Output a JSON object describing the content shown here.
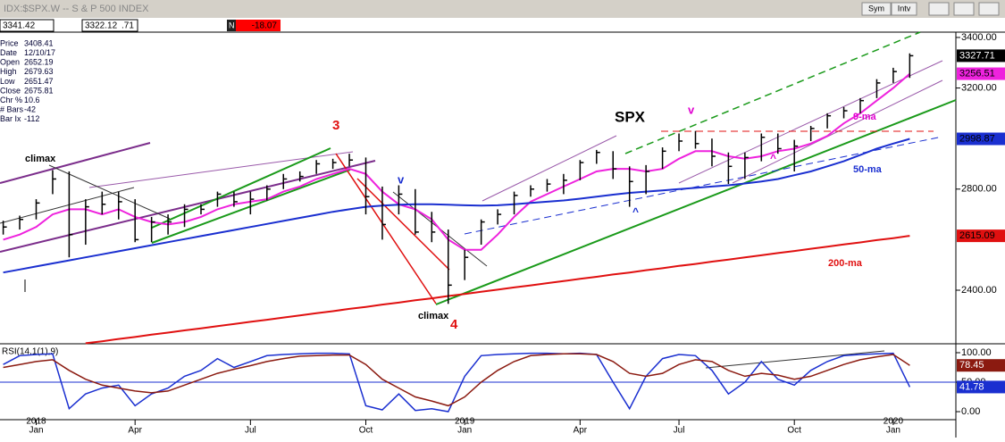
{
  "header": {
    "title": "IDX:$SPX.W -- S & P 500 INDEX",
    "fields": [
      "3341.42",
      "3322.12",
      ".71"
    ],
    "flag": "N",
    "change": "-18.07",
    "buttons": [
      "Sym",
      "Intv"
    ]
  },
  "info": [
    {
      "label": "Price",
      "value": "3408.41"
    },
    {
      "label": "Date",
      "value": "12/10/17"
    },
    {
      "label": "Open",
      "value": "2652.19"
    },
    {
      "label": "High",
      "value": "2679.63"
    },
    {
      "label": "Low",
      "value": "2651.47"
    },
    {
      "label": "Close",
      "value": "2675.81"
    },
    {
      "label": "Chr %",
      "value": "10.6"
    },
    {
      "label": "# Bars",
      "value": "-42"
    },
    {
      "label": "Bar Ix",
      "value": "-112"
    }
  ],
  "chart_data": {
    "type": "ohlc",
    "title": "SPX",
    "categories": [
      null,
      null,
      "Jan",
      null,
      null,
      null,
      null,
      null,
      "Apr",
      null,
      null,
      null,
      null,
      null,
      null,
      "Jul",
      null,
      null,
      null,
      null,
      null,
      null,
      "Oct",
      null,
      null,
      null,
      null,
      null,
      "Jan",
      null,
      null,
      null,
      null,
      null,
      null,
      "Apr",
      null,
      null,
      null,
      null,
      null,
      "Jul",
      null,
      null,
      null,
      null,
      null,
      null,
      "Oct",
      null,
      null,
      null,
      null,
      null,
      "Jan",
      null
    ],
    "years": [
      "2018",
      "2019",
      "2020"
    ],
    "high": [
      2675,
      2695,
      2760,
      2875,
      2870,
      2760,
      2790,
      2790,
      2760,
      2690,
      2700,
      2740,
      2740,
      2790,
      2790,
      2790,
      2815,
      2860,
      2870,
      2915,
      2920,
      2940,
      2925,
      2810,
      2815,
      2800,
      2710,
      2640,
      2560,
      2680,
      2720,
      2790,
      2815,
      2840,
      2860,
      2915,
      2955,
      2950,
      2890,
      2895,
      2965,
      3020,
      3030,
      3000,
      2945,
      2945,
      3020,
      3020,
      2995,
      3050,
      3100,
      3125,
      3160,
      3235,
      3280,
      3337
    ],
    "low": [
      2620,
      2640,
      2680,
      2780,
      2530,
      2580,
      2700,
      2680,
      2590,
      2590,
      2620,
      2650,
      2700,
      2730,
      2730,
      2700,
      2755,
      2800,
      2830,
      2860,
      2880,
      2890,
      2700,
      2600,
      2700,
      2620,
      2590,
      2346,
      2440,
      2580,
      2660,
      2700,
      2770,
      2790,
      2780,
      2835,
      2900,
      2840,
      2730,
      2780,
      2880,
      2950,
      2960,
      2890,
      2820,
      2840,
      2910,
      2940,
      2870,
      2990,
      3040,
      3080,
      3100,
      3160,
      3220,
      3240
    ],
    "close": [
      2650,
      2680,
      2745,
      2840,
      2620,
      2730,
      2740,
      2750,
      2600,
      2670,
      2670,
      2720,
      2720,
      2780,
      2750,
      2760,
      2800,
      2840,
      2850,
      2900,
      2905,
      2915,
      2770,
      2660,
      2780,
      2630,
      2630,
      2420,
      2530,
      2670,
      2700,
      2775,
      2800,
      2820,
      2835,
      2905,
      2945,
      2880,
      2830,
      2870,
      2950,
      2990,
      2980,
      2930,
      2890,
      2925,
      3005,
      2960,
      2970,
      3040,
      3090,
      3110,
      3150,
      3220,
      3265,
      3327.71
    ],
    "bar_color": "#000000",
    "series": [
      {
        "name": "9-ma",
        "color": "#ee22dd",
        "values": [
          2600,
          2620,
          2650,
          2700,
          2720,
          2720,
          2700,
          2720,
          2690,
          2670,
          2660,
          2670,
          2690,
          2720,
          2740,
          2750,
          2760,
          2790,
          2810,
          2840,
          2860,
          2880,
          2860,
          2790,
          2740,
          2720,
          2680,
          2600,
          2560,
          2560,
          2620,
          2690,
          2750,
          2780,
          2810,
          2840,
          2870,
          2880,
          2880,
          2870,
          2880,
          2920,
          2950,
          2950,
          2930,
          2920,
          2930,
          2950,
          2960,
          2980,
          3010,
          3060,
          3100,
          3150,
          3200,
          3256.51
        ],
        "value_label": "3256.51"
      },
      {
        "name": "50-ma",
        "color": "#1a2fd0",
        "values": [
          2470,
          2482,
          2494,
          2506,
          2518,
          2530,
          2542,
          2554,
          2566,
          2578,
          2590,
          2602,
          2614,
          2626,
          2638,
          2650,
          2662,
          2674,
          2686,
          2698,
          2710,
          2720,
          2730,
          2735,
          2738,
          2740,
          2740,
          2738,
          2736,
          2735,
          2736,
          2740,
          2745,
          2750,
          2755,
          2762,
          2770,
          2778,
          2785,
          2790,
          2795,
          2800,
          2805,
          2810,
          2815,
          2822,
          2830,
          2840,
          2855,
          2870,
          2890,
          2910,
          2935,
          2960,
          2980,
          2998.87
        ],
        "value_label": "2998.87"
      },
      {
        "name": "200-ma",
        "color": "#e01010",
        "values": [
          null,
          null,
          null,
          null,
          null,
          2190,
          2198,
          2207,
          2215,
          2224,
          2232,
          2241,
          2249,
          2258,
          2266,
          2275,
          2283,
          2292,
          2300,
          2309,
          2317,
          2326,
          2334,
          2343,
          2351,
          2360,
          2368,
          2377,
          2385,
          2394,
          2402,
          2411,
          2419,
          2428,
          2436,
          2445,
          2453,
          2462,
          2470,
          2479,
          2487,
          2496,
          2504,
          2513,
          2521,
          2530,
          2538,
          2547,
          2555,
          2564,
          2572,
          2581,
          2589,
          2598,
          2606,
          2615.09
        ],
        "value_label": "2615.09"
      }
    ],
    "close_label": "3327.71",
    "ylim": [
      2188,
      3421
    ],
    "yticks": [
      {
        "value": 2400,
        "label": "2400.00"
      },
      {
        "value": 2800,
        "label": "2800.00"
      },
      {
        "value": 3200,
        "label": "3200.00"
      },
      {
        "value": 3400,
        "label": "3400.00"
      }
    ],
    "annotations": [
      "climax",
      "3",
      "v",
      "climax",
      "4",
      "SPX",
      "v",
      "^",
      "^",
      "9-ma",
      "50-ma",
      "200-ma"
    ],
    "rsi": {
      "label": "RSI(14,1(1),9)",
      "ylim": [
        -13.6,
        113.6
      ],
      "yticks": [
        {
          "value": 0,
          "label": "0.00"
        },
        {
          "value": 50,
          "label": "50.00"
        },
        {
          "value": 100,
          "label": "100.00"
        }
      ],
      "series": [
        {
          "color": "#1a2fd0",
          "values": [
            80,
            95,
            97,
            98,
            5,
            30,
            40,
            45,
            10,
            30,
            40,
            60,
            70,
            90,
            75,
            85,
            95,
            97,
            98,
            99,
            99,
            98,
            10,
            3,
            30,
            2,
            5,
            0,
            60,
            95,
            97,
            98,
            99,
            99,
            98,
            99,
            97,
            50,
            5,
            60,
            90,
            97,
            95,
            70,
            30,
            50,
            85,
            55,
            45,
            70,
            85,
            95,
            97,
            98,
            99,
            41.78
          ],
          "value_label": "41.78"
        },
        {
          "color": "#8b1a10",
          "values": [
            75,
            80,
            85,
            88,
            70,
            55,
            45,
            40,
            35,
            32,
            35,
            45,
            55,
            65,
            72,
            78,
            85,
            90,
            94,
            95,
            96,
            96,
            80,
            55,
            40,
            25,
            18,
            10,
            25,
            50,
            70,
            85,
            95,
            97,
            98,
            98,
            97,
            85,
            65,
            60,
            65,
            80,
            88,
            85,
            70,
            60,
            65,
            62,
            55,
            60,
            70,
            80,
            88,
            93,
            97,
            78.45
          ],
          "value_label": "78.45"
        }
      ]
    }
  }
}
